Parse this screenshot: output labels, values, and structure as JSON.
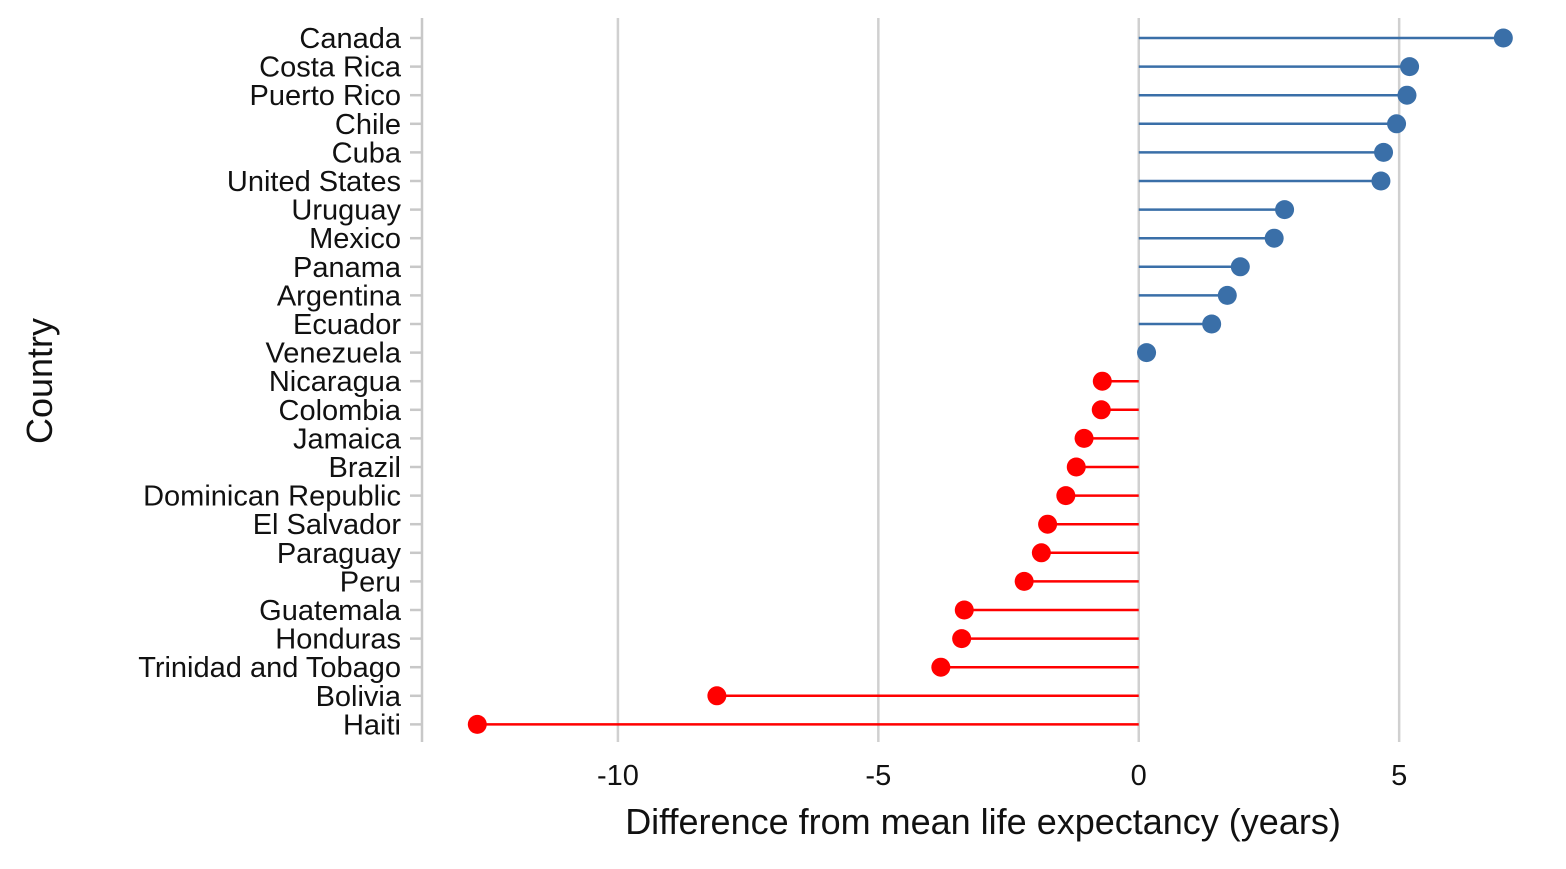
{
  "chart_data": {
    "type": "lollipop",
    "title": "",
    "xlabel": "Difference from mean life expectancy (years)",
    "ylabel": "Country",
    "xlim": [
      -13.8,
      7.8
    ],
    "xticks": [
      -10,
      -5,
      0,
      5
    ],
    "xtick_labels": [
      "-10",
      "-5",
      "0",
      "5"
    ],
    "baseline": 0,
    "grid": "vertical major gridlines",
    "legend": "none",
    "colors": {
      "above_mean": "#3a6fa8",
      "below_mean": "#ff0000",
      "grid": "#d0d0d0",
      "axis_ticks": "#c8c8c8",
      "text": "#111111"
    },
    "categories": [
      "Canada",
      "Costa Rica",
      "Puerto Rico",
      "Chile",
      "Cuba",
      "United States",
      "Uruguay",
      "Mexico",
      "Panama",
      "Argentina",
      "Ecuador",
      "Venezuela",
      "Nicaragua",
      "Colombia",
      "Jamaica",
      "Brazil",
      "Dominican Republic",
      "El Salvador",
      "Paraguay",
      "Peru",
      "Guatemala",
      "Honduras",
      "Trinidad and Tobago",
      "Bolivia",
      "Haiti"
    ],
    "values": [
      7.0,
      5.2,
      5.15,
      4.95,
      4.7,
      4.65,
      2.8,
      2.6,
      1.95,
      1.7,
      1.4,
      0.15,
      -0.7,
      -0.72,
      -1.05,
      -1.2,
      -1.4,
      -1.75,
      -1.87,
      -2.2,
      -3.35,
      -3.4,
      -3.8,
      -8.1,
      -12.7
    ]
  }
}
